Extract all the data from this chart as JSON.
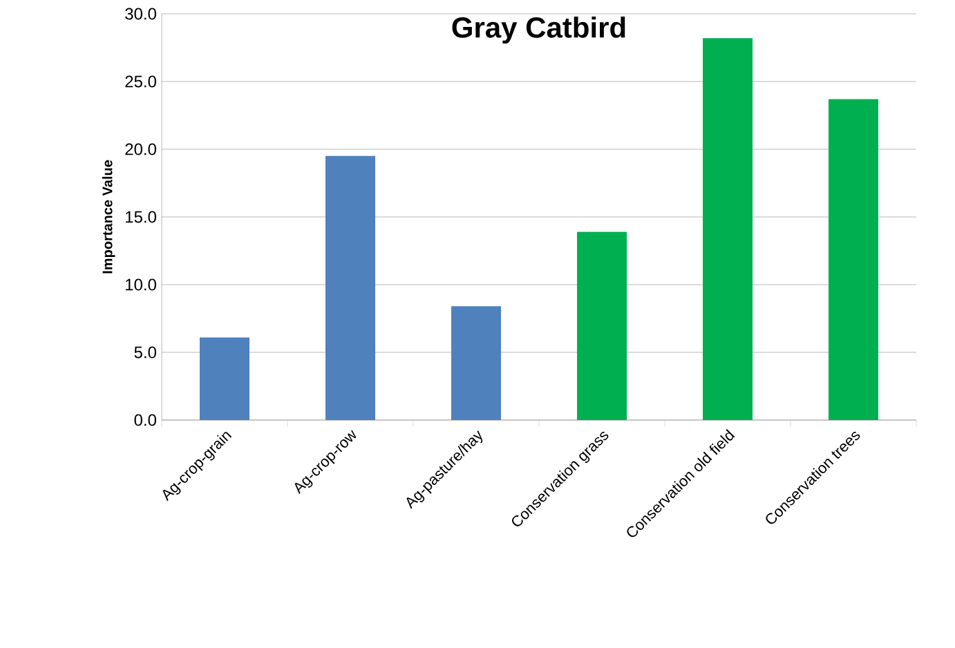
{
  "chart_data": {
    "type": "bar",
    "title": "Gray Catbird",
    "ylabel": "Importance Value",
    "categories": [
      "Ag-crop-grain",
      "Ag-crop-row",
      "Ag-pasture/hay",
      "Conservation grass",
      "Conservation old field",
      "Conservation trees"
    ],
    "values": [
      6.1,
      19.5,
      8.4,
      13.9,
      28.2,
      23.7
    ],
    "colors": [
      "#4f81bd",
      "#4f81bd",
      "#4f81bd",
      "#00b050",
      "#00b050",
      "#00b050"
    ],
    "ylim": [
      0,
      30
    ],
    "yticks": [
      {
        "value": 0,
        "label": "0.0"
      },
      {
        "value": 5,
        "label": "5.0"
      },
      {
        "value": 10,
        "label": "10.0"
      },
      {
        "value": 15,
        "label": "15.0"
      },
      {
        "value": 20,
        "label": "20.0"
      },
      {
        "value": 25,
        "label": "25.0"
      },
      {
        "value": 30,
        "label": "30.0"
      }
    ],
    "grid": "y"
  }
}
